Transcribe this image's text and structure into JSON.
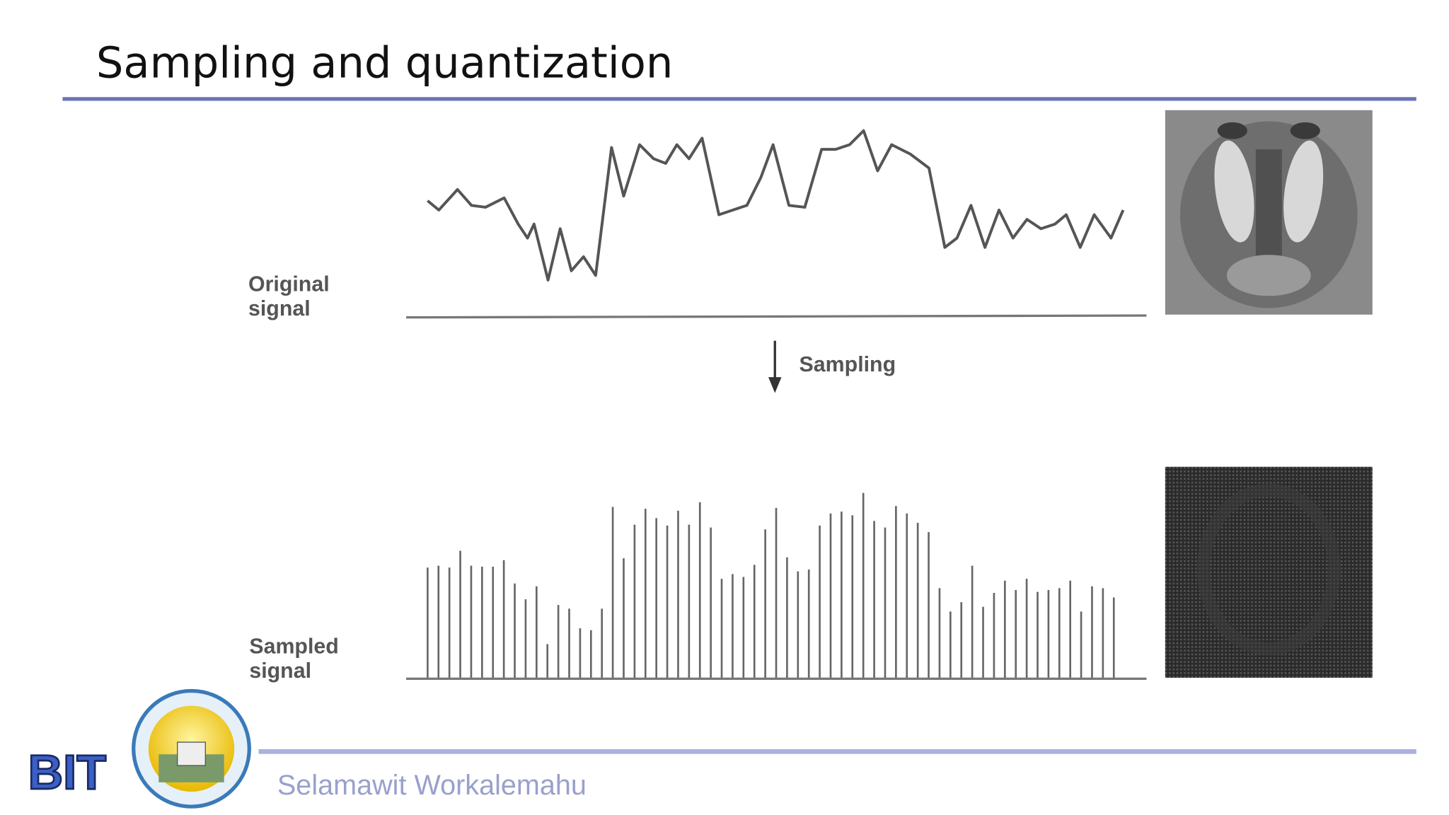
{
  "header": {
    "title": "Sampling and quantization"
  },
  "figure": {
    "original_label": [
      "Original",
      "signal"
    ],
    "sampled_label": [
      "Sampled",
      "signal"
    ],
    "arrow_label": "Sampling"
  },
  "footer": {
    "logo_text": "BIT",
    "author": "Selamawit Workalemahu"
  }
}
